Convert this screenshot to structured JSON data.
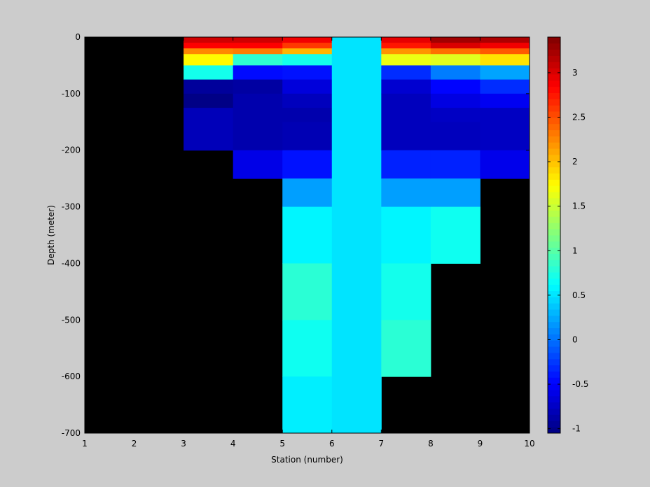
{
  "chart_data": {
    "type": "heatmap",
    "title": "",
    "xlabel": "Station (number)",
    "ylabel": "Depth (meter)",
    "xlim": [
      1,
      10
    ],
    "ylim": [
      -700,
      0
    ],
    "x_ticks": [
      "1",
      "2",
      "3",
      "4",
      "5",
      "6",
      "7",
      "8",
      "9",
      "10"
    ],
    "y_ticks": [
      "0",
      "-100",
      "-200",
      "-300",
      "-400",
      "-500",
      "-600",
      "-700"
    ],
    "colorbar": {
      "colormap": "jet",
      "range": [
        -1.05,
        3.4
      ],
      "ticks": [
        "-1",
        "-0.5",
        "0",
        "0.5",
        "1",
        "1.5",
        "2",
        "2.5",
        "3"
      ],
      "tick_values": [
        -1,
        -0.5,
        0,
        0.5,
        1,
        1.5,
        2,
        2.5,
        3
      ]
    },
    "background_color": "#000000",
    "grid": false,
    "cells": [
      {
        "x0": 3,
        "x1": 4,
        "y0": -10,
        "y1": 0,
        "value": 3.05
      },
      {
        "x0": 3,
        "x1": 4,
        "y0": -20,
        "y1": -10,
        "value": 2.85
      },
      {
        "x0": 3,
        "x1": 4,
        "y0": -30,
        "y1": -20,
        "value": 2.25
      },
      {
        "x0": 3,
        "x1": 4,
        "y0": -50,
        "y1": -30,
        "value": 1.75
      },
      {
        "x0": 3,
        "x1": 4,
        "y0": -75,
        "y1": -50,
        "value": 0.7
      },
      {
        "x0": 3,
        "x1": 4,
        "y0": -100,
        "y1": -75,
        "value": -0.93
      },
      {
        "x0": 3,
        "x1": 4,
        "y0": -125,
        "y1": -100,
        "value": -1.02
      },
      {
        "x0": 3,
        "x1": 4,
        "y0": -200,
        "y1": -125,
        "value": -0.8
      },
      {
        "x0": 4,
        "x1": 5,
        "y0": -10,
        "y1": 0,
        "value": 3.05
      },
      {
        "x0": 4,
        "x1": 5,
        "y0": -20,
        "y1": -10,
        "value": 2.85
      },
      {
        "x0": 4,
        "x1": 5,
        "y0": -30,
        "y1": -20,
        "value": 2.3
      },
      {
        "x0": 4,
        "x1": 5,
        "y0": -50,
        "y1": -30,
        "value": 0.82
      },
      {
        "x0": 4,
        "x1": 5,
        "y0": -75,
        "y1": -50,
        "value": -0.45
      },
      {
        "x0": 4,
        "x1": 5,
        "y0": -100,
        "y1": -75,
        "value": -0.9
      },
      {
        "x0": 4,
        "x1": 5,
        "y0": -200,
        "y1": -100,
        "value": -0.85
      },
      {
        "x0": 4,
        "x1": 5,
        "y0": -250,
        "y1": -200,
        "value": -0.6
      },
      {
        "x0": 5,
        "x1": 6,
        "y0": -10,
        "y1": 0,
        "value": 2.9
      },
      {
        "x0": 5,
        "x1": 6,
        "y0": -20,
        "y1": -10,
        "value": 2.6
      },
      {
        "x0": 5,
        "x1": 6,
        "y0": -30,
        "y1": -20,
        "value": 2.05
      },
      {
        "x0": 5,
        "x1": 6,
        "y0": -50,
        "y1": -30,
        "value": 0.7
      },
      {
        "x0": 5,
        "x1": 6,
        "y0": -75,
        "y1": -50,
        "value": -0.42
      },
      {
        "x0": 5,
        "x1": 6,
        "y0": -100,
        "y1": -75,
        "value": -0.65
      },
      {
        "x0": 5,
        "x1": 6,
        "y0": -125,
        "y1": -100,
        "value": -0.78
      },
      {
        "x0": 5,
        "x1": 6,
        "y0": -150,
        "y1": -125,
        "value": -0.85
      },
      {
        "x0": 5,
        "x1": 6,
        "y0": -200,
        "y1": -150,
        "value": -0.82
      },
      {
        "x0": 5,
        "x1": 6,
        "y0": -250,
        "y1": -200,
        "value": -0.42
      },
      {
        "x0": 5,
        "x1": 6,
        "y0": -300,
        "y1": -250,
        "value": 0.2
      },
      {
        "x0": 5,
        "x1": 6,
        "y0": -400,
        "y1": -300,
        "value": 0.58
      },
      {
        "x0": 5,
        "x1": 6,
        "y0": -500,
        "y1": -400,
        "value": 0.8
      },
      {
        "x0": 5,
        "x1": 6,
        "y0": -600,
        "y1": -500,
        "value": 0.68
      },
      {
        "x0": 5,
        "x1": 6,
        "y0": -700,
        "y1": -600,
        "value": 0.55
      },
      {
        "x0": 6,
        "x1": 7,
        "y0": -700,
        "y1": 0,
        "value": 0.5
      },
      {
        "x0": 7,
        "x1": 8,
        "y0": -10,
        "y1": 0,
        "value": 2.95
      },
      {
        "x0": 7,
        "x1": 8,
        "y0": -20,
        "y1": -10,
        "value": 2.75
      },
      {
        "x0": 7,
        "x1": 8,
        "y0": -30,
        "y1": -20,
        "value": 2.2
      },
      {
        "x0": 7,
        "x1": 8,
        "y0": -50,
        "y1": -30,
        "value": 1.65
      },
      {
        "x0": 7,
        "x1": 8,
        "y0": -75,
        "y1": -50,
        "value": -0.3
      },
      {
        "x0": 7,
        "x1": 8,
        "y0": -100,
        "y1": -75,
        "value": -0.7
      },
      {
        "x0": 7,
        "x1": 8,
        "y0": -200,
        "y1": -100,
        "value": -0.78
      },
      {
        "x0": 7,
        "x1": 8,
        "y0": -250,
        "y1": -200,
        "value": -0.35
      },
      {
        "x0": 7,
        "x1": 8,
        "y0": -300,
        "y1": -250,
        "value": 0.2
      },
      {
        "x0": 7,
        "x1": 8,
        "y0": -400,
        "y1": -300,
        "value": 0.58
      },
      {
        "x0": 7,
        "x1": 8,
        "y0": -500,
        "y1": -400,
        "value": 0.7
      },
      {
        "x0": 7,
        "x1": 8,
        "y0": -600,
        "y1": -500,
        "value": 0.8
      },
      {
        "x0": 8,
        "x1": 9,
        "y0": -10,
        "y1": 0,
        "value": 3.25
      },
      {
        "x0": 8,
        "x1": 9,
        "y0": -20,
        "y1": -10,
        "value": 3.0
      },
      {
        "x0": 8,
        "x1": 9,
        "y0": -30,
        "y1": -20,
        "value": 2.35
      },
      {
        "x0": 8,
        "x1": 9,
        "y0": -50,
        "y1": -30,
        "value": 1.6
      },
      {
        "x0": 8,
        "x1": 9,
        "y0": -75,
        "y1": -50,
        "value": 0.05
      },
      {
        "x0": 8,
        "x1": 9,
        "y0": -100,
        "y1": -75,
        "value": -0.48
      },
      {
        "x0": 8,
        "x1": 9,
        "y0": -125,
        "y1": -100,
        "value": -0.62
      },
      {
        "x0": 8,
        "x1": 9,
        "y0": -150,
        "y1": -125,
        "value": -0.75
      },
      {
        "x0": 8,
        "x1": 9,
        "y0": -200,
        "y1": -150,
        "value": -0.78
      },
      {
        "x0": 8,
        "x1": 9,
        "y0": -250,
        "y1": -200,
        "value": -0.35
      },
      {
        "x0": 8,
        "x1": 9,
        "y0": -300,
        "y1": -250,
        "value": 0.2
      },
      {
        "x0": 8,
        "x1": 9,
        "y0": -400,
        "y1": -300,
        "value": 0.68
      },
      {
        "x0": 9,
        "x1": 10,
        "y0": -10,
        "y1": 0,
        "value": 3.2
      },
      {
        "x0": 9,
        "x1": 10,
        "y0": -20,
        "y1": -10,
        "value": 2.9
      },
      {
        "x0": 9,
        "x1": 10,
        "y0": -30,
        "y1": -20,
        "value": 2.45
      },
      {
        "x0": 9,
        "x1": 10,
        "y0": -50,
        "y1": -30,
        "value": 1.85
      },
      {
        "x0": 9,
        "x1": 10,
        "y0": -75,
        "y1": -50,
        "value": 0.22
      },
      {
        "x0": 9,
        "x1": 10,
        "y0": -100,
        "y1": -75,
        "value": -0.3
      },
      {
        "x0": 9,
        "x1": 10,
        "y0": -125,
        "y1": -100,
        "value": -0.55
      },
      {
        "x0": 9,
        "x1": 10,
        "y0": -200,
        "y1": -125,
        "value": -0.76
      },
      {
        "x0": 9,
        "x1": 10,
        "y0": -250,
        "y1": -200,
        "value": -0.58
      }
    ]
  }
}
